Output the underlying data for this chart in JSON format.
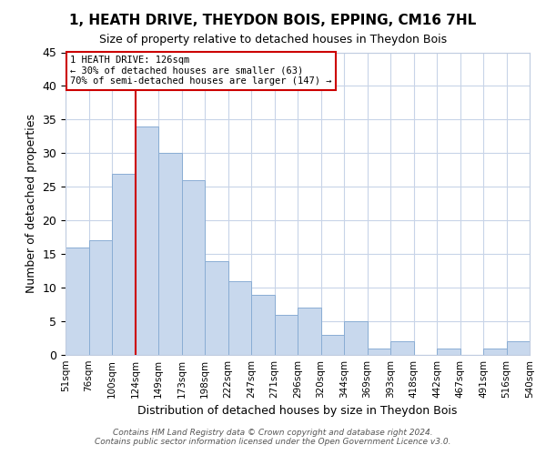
{
  "title": "1, HEATH DRIVE, THEYDON BOIS, EPPING, CM16 7HL",
  "subtitle": "Size of property relative to detached houses in Theydon Bois",
  "xlabel": "Distribution of detached houses by size in Theydon Bois",
  "ylabel": "Number of detached properties",
  "bin_labels": [
    "51sqm",
    "76sqm",
    "100sqm",
    "124sqm",
    "149sqm",
    "173sqm",
    "198sqm",
    "222sqm",
    "247sqm",
    "271sqm",
    "296sqm",
    "320sqm",
    "344sqm",
    "369sqm",
    "393sqm",
    "418sqm",
    "442sqm",
    "467sqm",
    "491sqm",
    "516sqm",
    "540sqm"
  ],
  "bar_values": [
    16,
    17,
    27,
    34,
    30,
    26,
    14,
    11,
    9,
    6,
    7,
    3,
    5,
    1,
    2,
    0,
    1,
    0,
    1,
    2
  ],
  "bar_color": "#c8d8ed",
  "bar_edge_color": "#8aadd4",
  "vline_bin_index": 3,
  "annotation_text": "1 HEATH DRIVE: 126sqm\n← 30% of detached houses are smaller (63)\n70% of semi-detached houses are larger (147) →",
  "annotation_box_color": "#ffffff",
  "annotation_box_edge_color": "#cc0000",
  "vline_color": "#cc0000",
  "ylim": [
    0,
    45
  ],
  "yticks": [
    0,
    5,
    10,
    15,
    20,
    25,
    30,
    35,
    40,
    45
  ],
  "footer_line1": "Contains HM Land Registry data © Crown copyright and database right 2024.",
  "footer_line2": "Contains public sector information licensed under the Open Government Licence v3.0.",
  "bg_color": "#ffffff",
  "grid_color": "#c8d4e8"
}
